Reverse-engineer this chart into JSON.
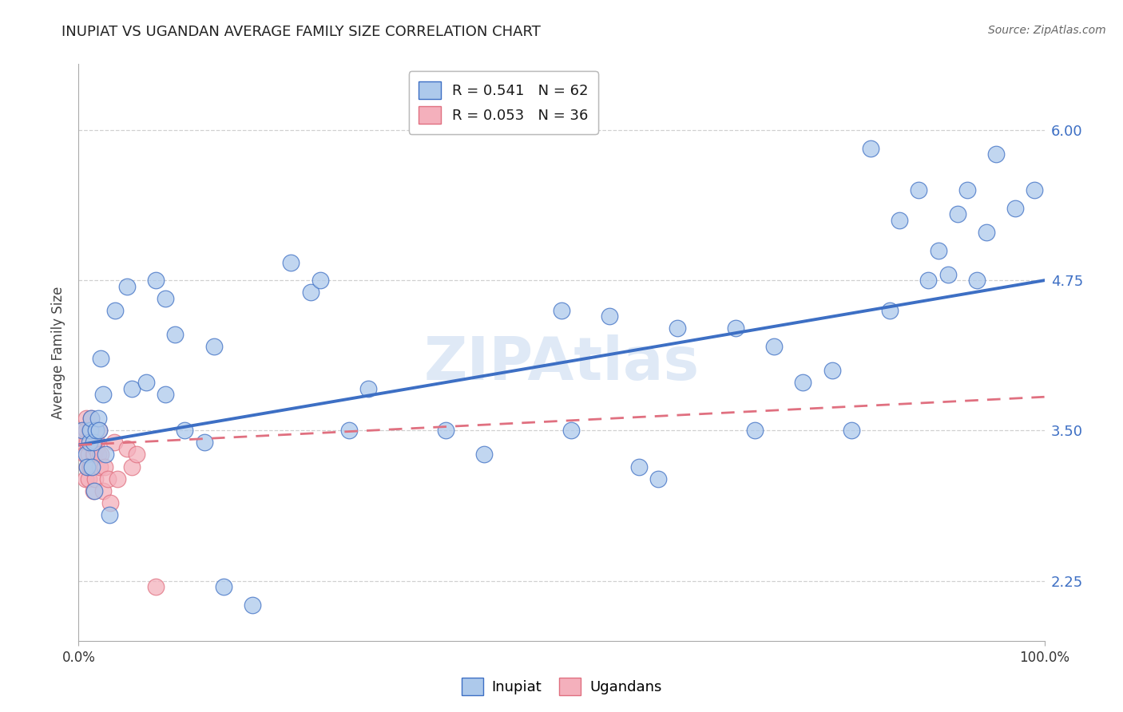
{
  "title": "INUPIAT VS UGANDAN AVERAGE FAMILY SIZE CORRELATION CHART",
  "source": "Source: ZipAtlas.com",
  "ylabel": "Average Family Size",
  "xlim": [
    0,
    1
  ],
  "ylim": [
    1.75,
    6.55
  ],
  "x_tick_labels": [
    "0.0%",
    "100.0%"
  ],
  "y_ticks": [
    2.25,
    3.5,
    4.75,
    6.0
  ],
  "y_tick_labels": [
    "2.25",
    "3.50",
    "4.75",
    "6.00"
  ],
  "background_color": "#ffffff",
  "grid_color": "#d0d0d0",
  "legend_label1": "R = 0.541   N = 62",
  "legend_label2": "R = 0.053   N = 36",
  "inupiat_color": "#adc9eb",
  "ugandan_color": "#f4b0bc",
  "trend_blue": "#3d6fc4",
  "trend_pink": "#e07080",
  "inupiat_x": [
    0.004,
    0.008,
    0.009,
    0.011,
    0.012,
    0.013,
    0.014,
    0.015,
    0.016,
    0.018,
    0.02,
    0.021,
    0.023,
    0.025,
    0.028,
    0.032,
    0.038,
    0.05,
    0.055,
    0.07,
    0.08,
    0.09,
    0.09,
    0.1,
    0.11,
    0.13,
    0.14,
    0.15,
    0.18,
    0.22,
    0.24,
    0.25,
    0.28,
    0.3,
    0.38,
    0.42,
    0.5,
    0.51,
    0.55,
    0.58,
    0.6,
    0.62,
    0.68,
    0.7,
    0.72,
    0.75,
    0.78,
    0.8,
    0.82,
    0.84,
    0.85,
    0.87,
    0.88,
    0.89,
    0.9,
    0.91,
    0.92,
    0.93,
    0.94,
    0.95,
    0.97,
    0.99
  ],
  "inupiat_y": [
    3.5,
    3.3,
    3.2,
    3.4,
    3.5,
    3.6,
    3.2,
    3.4,
    3.0,
    3.5,
    3.6,
    3.5,
    4.1,
    3.8,
    3.3,
    2.8,
    4.5,
    4.7,
    3.85,
    3.9,
    4.75,
    3.8,
    4.6,
    4.3,
    3.5,
    3.4,
    4.2,
    2.2,
    2.05,
    4.9,
    4.65,
    4.75,
    3.5,
    3.85,
    3.5,
    3.3,
    4.5,
    3.5,
    4.45,
    3.2,
    3.1,
    4.35,
    4.35,
    3.5,
    4.2,
    3.9,
    4.0,
    3.5,
    5.85,
    4.5,
    5.25,
    5.5,
    4.75,
    5.0,
    4.8,
    5.3,
    5.5,
    4.75,
    5.15,
    5.8,
    5.35,
    5.5
  ],
  "ugandan_x": [
    0.004,
    0.005,
    0.006,
    0.007,
    0.008,
    0.008,
    0.009,
    0.009,
    0.01,
    0.01,
    0.011,
    0.011,
    0.012,
    0.012,
    0.013,
    0.014,
    0.015,
    0.015,
    0.016,
    0.017,
    0.018,
    0.019,
    0.02,
    0.021,
    0.022,
    0.023,
    0.025,
    0.027,
    0.03,
    0.033,
    0.037,
    0.04,
    0.05,
    0.055,
    0.06,
    0.08
  ],
  "ugandan_y": [
    3.4,
    3.5,
    3.3,
    3.1,
    3.6,
    3.5,
    3.2,
    3.4,
    3.3,
    3.1,
    3.2,
    3.5,
    3.4,
    3.2,
    3.6,
    3.5,
    3.3,
    3.0,
    3.3,
    3.1,
    3.35,
    3.4,
    3.3,
    3.5,
    3.2,
    3.3,
    3.0,
    3.2,
    3.1,
    2.9,
    3.4,
    3.1,
    3.35,
    3.2,
    3.3,
    2.2
  ],
  "blue_trend_y0": 3.38,
  "blue_trend_y1": 4.75,
  "pink_trend_y0": 3.38,
  "pink_trend_y1": 3.78
}
